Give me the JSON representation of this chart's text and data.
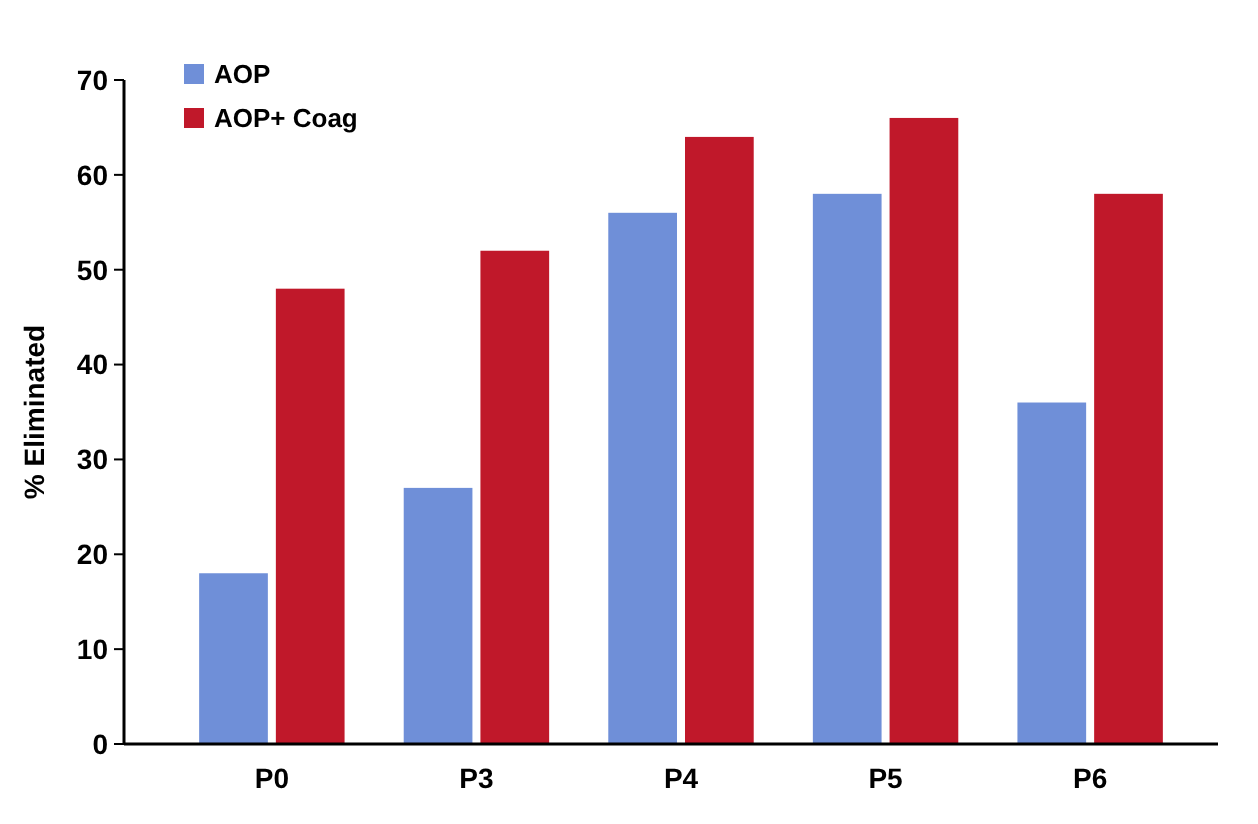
{
  "chart_data": {
    "type": "bar",
    "ylabel": "% Eliminated",
    "categories": [
      "P0",
      "P3",
      "P4",
      "P5",
      "P6"
    ],
    "series": [
      {
        "name": "AOP",
        "color": "#6f8fd8",
        "values": [
          18,
          27,
          56,
          58,
          36
        ]
      },
      {
        "name": "AOP+ Coag",
        "color": "#c0182a",
        "values": [
          48,
          52,
          64,
          66,
          58
        ]
      }
    ],
    "ylim": [
      0,
      70
    ],
    "yticks": [
      0,
      10,
      20,
      30,
      40,
      50,
      60,
      70
    ],
    "grid": false,
    "legend": "top left"
  }
}
